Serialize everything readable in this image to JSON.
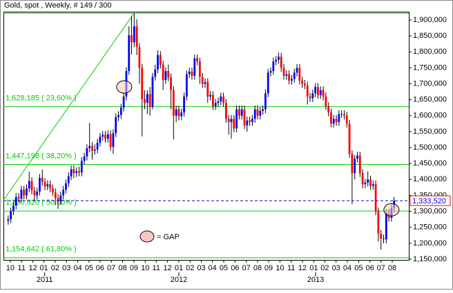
{
  "chart_data": {
    "type": "candlestick",
    "title": "Gold, spot , Weekly, # 149 / 300",
    "series": [
      {
        "up_color": "#0000ff",
        "down_color": "#ff0000",
        "wick_color": "#000000",
        "x": [
          0,
          1,
          2,
          3,
          4,
          5,
          6,
          7,
          8,
          9,
          10,
          11,
          12,
          13,
          14,
          15,
          16,
          17,
          18,
          19,
          20,
          21,
          22,
          23,
          24,
          25,
          26,
          27,
          28,
          29,
          30,
          31,
          32,
          33,
          34,
          35,
          36,
          37,
          38,
          39,
          40,
          41,
          42,
          43,
          44,
          45,
          46,
          47,
          48,
          49,
          50,
          51,
          52,
          53,
          54,
          55,
          56,
          57,
          58,
          59,
          60,
          61,
          62,
          63,
          64,
          65,
          66,
          67,
          68,
          69,
          70,
          71,
          72,
          73,
          74,
          75,
          76,
          77,
          78,
          79,
          80,
          81,
          82,
          83,
          84,
          85,
          86,
          87,
          88,
          89,
          90,
          91,
          92,
          93,
          94,
          95,
          96,
          97,
          98,
          99,
          100,
          101,
          102,
          103,
          104,
          105,
          106,
          107,
          108,
          109,
          110,
          111,
          112,
          113,
          114,
          115,
          116,
          117,
          118,
          119,
          120,
          121,
          122,
          123,
          124,
          125,
          126,
          127,
          128,
          129,
          130,
          131,
          132,
          133,
          134,
          135,
          136,
          137,
          138,
          139,
          140,
          141,
          142,
          143,
          144,
          145,
          146,
          147
        ],
        "open": [
          1270,
          1275,
          1300,
          1318,
          1345,
          1340,
          1368,
          1350,
          1372,
          1395,
          1365,
          1350,
          1362,
          1405,
          1392,
          1378,
          1385,
          1372,
          1360,
          1342,
          1332,
          1350,
          1368,
          1388,
          1410,
          1432,
          1420,
          1426,
          1422,
          1458,
          1472,
          1498,
          1505,
          1490,
          1494,
          1515,
          1534,
          1540,
          1528,
          1542,
          1502,
          1545,
          1595,
          1602,
          1625,
          1660,
          1740,
          1852,
          1830,
          1880,
          1815,
          1750,
          1652,
          1640,
          1668,
          1628,
          1722,
          1745,
          1790,
          1760,
          1712,
          1740,
          1720,
          1680,
          1600,
          1620,
          1598,
          1610,
          1660,
          1730,
          1738,
          1725,
          1780,
          1770,
          1722,
          1700,
          1705,
          1660,
          1665,
          1630,
          1640,
          1645,
          1660,
          1640,
          1590,
          1580,
          1590,
          1560,
          1620,
          1600,
          1620,
          1570,
          1585,
          1580,
          1590,
          1620,
          1600,
          1615,
          1620,
          1670,
          1735,
          1740,
          1770,
          1775,
          1785,
          1750,
          1725,
          1730,
          1710,
          1715,
          1735,
          1750,
          1710,
          1700,
          1695,
          1660,
          1655,
          1670,
          1690,
          1665,
          1680,
          1660,
          1630,
          1610,
          1575,
          1590,
          1580,
          1605,
          1605,
          1600,
          1575,
          1480,
          1420,
          1465,
          1475,
          1420,
          1385,
          1390,
          1400,
          1380,
          1385,
          1300,
          1230,
          1215,
          1212,
          1295,
          1280,
          1310
        ],
        "high": [
          1287,
          1312,
          1330,
          1357,
          1357,
          1380,
          1380,
          1384,
          1424,
          1407,
          1377,
          1374,
          1417,
          1431,
          1404,
          1397,
          1397,
          1384,
          1372,
          1354,
          1362,
          1380,
          1400,
          1422,
          1444,
          1444,
          1438,
          1440,
          1470,
          1484,
          1510,
          1577,
          1517,
          1510,
          1527,
          1546,
          1552,
          1552,
          1554,
          1554,
          1557,
          1607,
          1614,
          1637,
          1672,
          1752,
          1880,
          1912,
          1921,
          1902,
          1827,
          1762,
          1680,
          1680,
          1690,
          1734,
          1760,
          1805,
          1802,
          1772,
          1752,
          1760,
          1732,
          1692,
          1632,
          1632,
          1622,
          1672,
          1742,
          1750,
          1750,
          1792,
          1792,
          1782,
          1734,
          1717,
          1717,
          1677,
          1677,
          1652,
          1657,
          1672,
          1672,
          1652,
          1602,
          1602,
          1602,
          1632,
          1632,
          1632,
          1632,
          1597,
          1597,
          1602,
          1632,
          1632,
          1627,
          1632,
          1682,
          1747,
          1752,
          1782,
          1787,
          1798,
          1797,
          1762,
          1742,
          1742,
          1727,
          1747,
          1762,
          1762,
          1722,
          1712,
          1707,
          1672,
          1682,
          1702,
          1702,
          1692,
          1692,
          1672,
          1642,
          1622,
          1602,
          1602,
          1617,
          1617,
          1617,
          1612,
          1587,
          1492,
          1477,
          1487,
          1487,
          1432,
          1402,
          1425,
          1412,
          1397,
          1397,
          1312,
          1242,
          1227,
          1307,
          1307,
          1322,
          1345
        ],
        "low": [
          1258,
          1263,
          1288,
          1306,
          1328,
          1328,
          1338,
          1338,
          1360,
          1353,
          1330,
          1338,
          1350,
          1380,
          1366,
          1366,
          1360,
          1348,
          1320,
          1308,
          1320,
          1338,
          1356,
          1376,
          1398,
          1404,
          1408,
          1410,
          1410,
          1446,
          1460,
          1485,
          1462,
          1478,
          1482,
          1503,
          1522,
          1516,
          1516,
          1490,
          1480,
          1533,
          1583,
          1590,
          1613,
          1648,
          1728,
          1792,
          1815,
          1790,
          1700,
          1535,
          1620,
          1605,
          1600,
          1620,
          1710,
          1733,
          1748,
          1680,
          1700,
          1708,
          1620,
          1525,
          1580,
          1585,
          1586,
          1598,
          1648,
          1718,
          1713,
          1713,
          1758,
          1700,
          1688,
          1688,
          1640,
          1648,
          1618,
          1618,
          1628,
          1633,
          1628,
          1578,
          1540,
          1528,
          1548,
          1548,
          1588,
          1588,
          1558,
          1550,
          1568,
          1568,
          1578,
          1588,
          1588,
          1603,
          1608,
          1658,
          1723,
          1728,
          1758,
          1763,
          1738,
          1713,
          1713,
          1698,
          1698,
          1703,
          1723,
          1698,
          1688,
          1683,
          1635,
          1643,
          1643,
          1658,
          1653,
          1653,
          1648,
          1618,
          1598,
          1563,
          1563,
          1568,
          1568,
          1593,
          1588,
          1563,
          1468,
          1322,
          1400,
          1453,
          1408,
          1373,
          1373,
          1378,
          1368,
          1368,
          1288,
          1205,
          1180,
          1200,
          1200,
          1268,
          1268,
          1298
        ],
        "close": [
          1275,
          1300,
          1318,
          1345,
          1340,
          1368,
          1350,
          1372,
          1395,
          1365,
          1350,
          1362,
          1405,
          1392,
          1378,
          1385,
          1372,
          1360,
          1342,
          1332,
          1350,
          1368,
          1388,
          1410,
          1432,
          1420,
          1426,
          1422,
          1458,
          1472,
          1498,
          1505,
          1490,
          1494,
          1515,
          1534,
          1540,
          1528,
          1542,
          1502,
          1545,
          1595,
          1602,
          1625,
          1660,
          1740,
          1852,
          1830,
          1880,
          1815,
          1750,
          1652,
          1640,
          1668,
          1628,
          1722,
          1745,
          1790,
          1760,
          1712,
          1740,
          1720,
          1680,
          1600,
          1620,
          1598,
          1610,
          1660,
          1730,
          1738,
          1725,
          1780,
          1770,
          1722,
          1700,
          1705,
          1660,
          1665,
          1630,
          1640,
          1645,
          1660,
          1640,
          1590,
          1580,
          1590,
          1560,
          1620,
          1600,
          1620,
          1570,
          1585,
          1580,
          1590,
          1620,
          1600,
          1615,
          1620,
          1670,
          1735,
          1740,
          1770,
          1775,
          1785,
          1750,
          1725,
          1730,
          1710,
          1715,
          1735,
          1750,
          1710,
          1700,
          1695,
          1660,
          1655,
          1670,
          1690,
          1665,
          1680,
          1660,
          1630,
          1610,
          1575,
          1590,
          1580,
          1605,
          1605,
          1600,
          1575,
          1480,
          1420,
          1465,
          1475,
          1420,
          1385,
          1390,
          1400,
          1380,
          1385,
          1300,
          1230,
          1215,
          1212,
          1295,
          1280,
          1310,
          1333.52
        ]
      }
    ],
    "xlim": [
      -1.8,
      152.6
    ],
    "ylim": [
      1147.8,
      1925.9
    ],
    "xticks": [
      {
        "value": 0.8,
        "label": "10"
      },
      {
        "value": 5.1,
        "label": "11"
      },
      {
        "value": 9.4,
        "label": "12"
      },
      {
        "value": 13.6,
        "label": "01"
      },
      {
        "value": 17.9,
        "label": "02"
      },
      {
        "value": 22.2,
        "label": "03"
      },
      {
        "value": 26.5,
        "label": "04"
      },
      {
        "value": 30.8,
        "label": "05"
      },
      {
        "value": 35.0,
        "label": "06"
      },
      {
        "value": 39.3,
        "label": "07"
      },
      {
        "value": 43.6,
        "label": "08"
      },
      {
        "value": 47.9,
        "label": "09"
      },
      {
        "value": 52.2,
        "label": "10"
      },
      {
        "value": 56.4,
        "label": "11"
      },
      {
        "value": 60.7,
        "label": "12"
      },
      {
        "value": 65.0,
        "label": "01"
      },
      {
        "value": 69.3,
        "label": "02"
      },
      {
        "value": 73.6,
        "label": "03"
      },
      {
        "value": 77.8,
        "label": "04"
      },
      {
        "value": 82.1,
        "label": "05"
      },
      {
        "value": 86.4,
        "label": "06"
      },
      {
        "value": 90.7,
        "label": "07"
      },
      {
        "value": 95.0,
        "label": "08"
      },
      {
        "value": 99.2,
        "label": "09"
      },
      {
        "value": 103.5,
        "label": "10"
      },
      {
        "value": 107.8,
        "label": "11"
      },
      {
        "value": 112.1,
        "label": "12"
      },
      {
        "value": 116.4,
        "label": "01"
      },
      {
        "value": 120.6,
        "label": "02"
      },
      {
        "value": 124.9,
        "label": "03"
      },
      {
        "value": 129.2,
        "label": "04"
      },
      {
        "value": 133.5,
        "label": "05"
      },
      {
        "value": 137.8,
        "label": "06"
      },
      {
        "value": 142.0,
        "label": "07"
      },
      {
        "value": 146.3,
        "label": "08"
      }
    ],
    "year_labels": [
      {
        "value": 13.9,
        "label": "2011"
      },
      {
        "value": 65.0,
        "label": "2012"
      },
      {
        "value": 117.1,
        "label": "2013"
      }
    ],
    "yticks": [
      {
        "value": 1150,
        "label": "1,150,000"
      },
      {
        "value": 1200,
        "label": "1,200,000"
      },
      {
        "value": 1250,
        "label": "1,250,000"
      },
      {
        "value": 1300,
        "label": "1,300,000"
      },
      {
        "value": 1350,
        "label": "1,350,000"
      },
      {
        "value": 1400,
        "label": "1,400,000"
      },
      {
        "value": 1450,
        "label": "1,450,000"
      },
      {
        "value": 1500,
        "label": "1,500,000"
      },
      {
        "value": 1550,
        "label": "1,550,000"
      },
      {
        "value": 1600,
        "label": "1,600,000"
      },
      {
        "value": 1650,
        "label": "1,650,000"
      },
      {
        "value": 1700,
        "label": "1,700,000"
      },
      {
        "value": 1750,
        "label": "1,750,000"
      },
      {
        "value": 1800,
        "label": "1,800,000"
      },
      {
        "value": 1850,
        "label": "1,850,000"
      },
      {
        "value": 1900,
        "label": "1,900,000"
      }
    ],
    "fib_color": "#00cc00",
    "fib_levels": [
      {
        "value": 1921.2,
        "label": null
      },
      {
        "value": 1628.185,
        "label": "1,628,185 ( 23,60% )"
      },
      {
        "value": 1447.198,
        "label": "1,447,198 ( 38,20% )"
      },
      {
        "value": 1300.92,
        "label": "1,300,920 ( 50,00% )"
      },
      {
        "value": 1154.642,
        "label": "1,154,642 ( 61,80% )"
      }
    ],
    "trendline": {
      "x": [
        -1.8,
        47.9
      ],
      "y": [
        1335,
        1921.2
      ]
    },
    "last_price": {
      "value": 1333.52,
      "label": "1,333,520",
      "color": "#0000cc"
    },
    "gap_markers": [
      {
        "x": 44.2,
        "y": 1690
      },
      {
        "x": 146,
        "y": 1305
      }
    ],
    "gap_legend": "= GAP"
  }
}
